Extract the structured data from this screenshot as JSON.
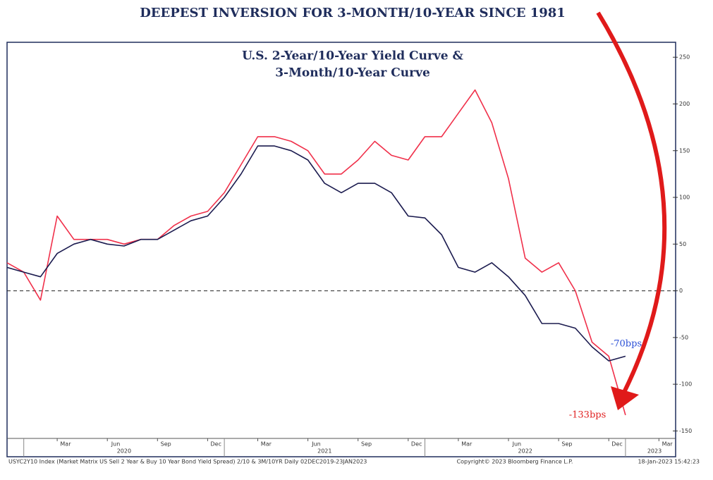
{
  "chart_data": {
    "type": "line",
    "header": "DEEPEST INVERSION FOR 3-MONTH/10-YEAR SINCE 1981",
    "title": [
      "U.S. 2-Year/10-Year Yield Curve &",
      "3-Month/10-Year Curve"
    ],
    "x": [
      "2019-12",
      "2020-01",
      "2020-02",
      "2020-03",
      "2020-04",
      "2020-05",
      "2020-06",
      "2020-07",
      "2020-08",
      "2020-09",
      "2020-10",
      "2020-11",
      "2020-12",
      "2021-01",
      "2021-02",
      "2021-03",
      "2021-04",
      "2021-05",
      "2021-06",
      "2021-07",
      "2021-08",
      "2021-09",
      "2021-10",
      "2021-11",
      "2021-12",
      "2022-01",
      "2022-02",
      "2022-03",
      "2022-04",
      "2022-05",
      "2022-06",
      "2022-07",
      "2022-08",
      "2022-09",
      "2022-10",
      "2022-11",
      "2022-12",
      "2023-01"
    ],
    "series": [
      {
        "color": "#1b1b4f",
        "values": [
          25,
          20,
          15,
          40,
          50,
          55,
          50,
          48,
          55,
          55,
          65,
          75,
          80,
          100,
          125,
          155,
          155,
          150,
          140,
          115,
          105,
          115,
          115,
          105,
          80,
          78,
          60,
          25,
          20,
          30,
          15,
          -5,
          -35,
          -35,
          -40,
          -60,
          -75,
          -70
        ]
      },
      {
        "color": "#f0304a",
        "values": [
          30,
          20,
          -10,
          80,
          55,
          55,
          55,
          50,
          55,
          55,
          70,
          80,
          85,
          105,
          135,
          165,
          165,
          160,
          150,
          125,
          125,
          140,
          160,
          145,
          140,
          165,
          165,
          190,
          215,
          180,
          120,
          35,
          20,
          30,
          0,
          -55,
          -70,
          -133
        ]
      }
    ],
    "xlim": [
      "2019-12",
      "2023-04"
    ],
    "xticks": [
      {
        "value": "2020-03",
        "label": "Mar"
      },
      {
        "value": "2020-06",
        "label": "Jun"
      },
      {
        "value": "2020-09",
        "label": "Sep"
      },
      {
        "value": "2020-12",
        "label": "Dec"
      },
      {
        "value": "2021-03",
        "label": "Mar"
      },
      {
        "value": "2021-06",
        "label": "Jun"
      },
      {
        "value": "2021-09",
        "label": "Sep"
      },
      {
        "value": "2021-12",
        "label": "Dec"
      },
      {
        "value": "2022-03",
        "label": "Mar"
      },
      {
        "value": "2022-06",
        "label": "Jun"
      },
      {
        "value": "2022-09",
        "label": "Sep"
      },
      {
        "value": "2022-12",
        "label": "Dec"
      },
      {
        "value": "2023-03",
        "label": "Mar"
      }
    ],
    "year_ticks": [
      {
        "value": "2020-01",
        "label": "2020"
      },
      {
        "value": "2021-01",
        "label": "2021"
      },
      {
        "value": "2022-01",
        "label": "2022"
      },
      {
        "value": "2023-01",
        "label": "2023"
      }
    ],
    "ylim": [
      -158,
      266
    ],
    "yticks": [
      -150,
      -100,
      -50,
      0,
      50,
      100,
      150,
      200,
      250
    ],
    "zero_line": 0,
    "annotations": [
      "-70bps",
      "-133bps"
    ],
    "footer": [
      "USYC2Y10 Index (Market Matrix US Sell 2 Year & Buy 10 Year Bond Yield Spread) 2/10 & 3M/10YR  Daily 02DEC2019-23JAN2023",
      "Copyright© 2023 Bloomberg Finance L.P.",
      "18-Jan-2023 15:42:23"
    ]
  }
}
